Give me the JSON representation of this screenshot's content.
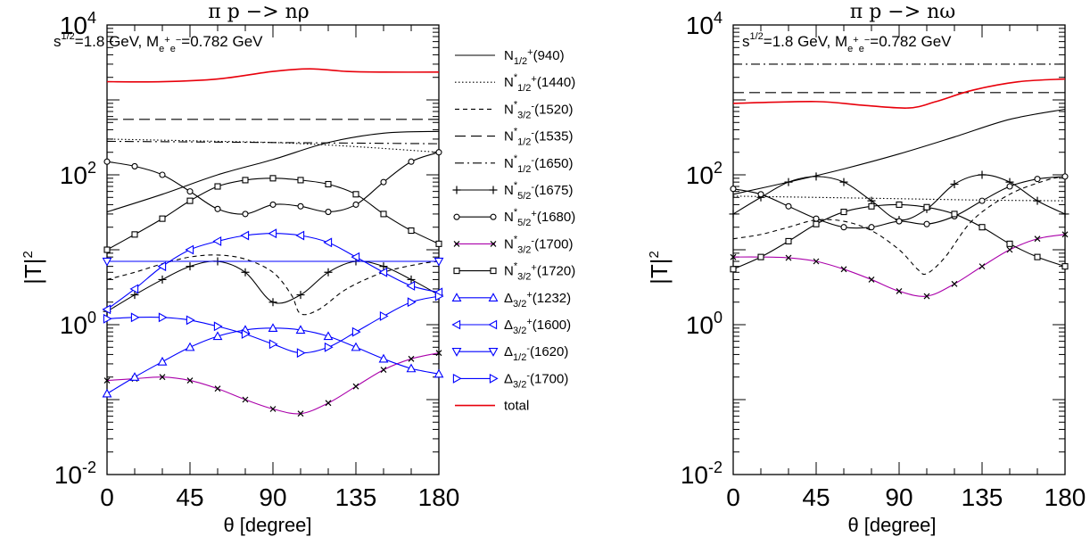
{
  "chart_data": [
    {
      "type": "line",
      "title": "π p −> nρ",
      "subtitle": "s^{1/2}=1.8 GeV,   M_{e⁺e⁻}=0.782 GeV",
      "xlabel": "θ [degree]",
      "ylabel": "|T|^2",
      "xlim": [
        0,
        180
      ],
      "ylim": [
        0.01,
        10000
      ],
      "yscale": "log",
      "x_ticks": [
        "0",
        "45",
        "90",
        "135",
        "180"
      ],
      "y_ticks": [
        "10^-2",
        "10^0",
        "10^2",
        "10^4"
      ],
      "grid": false,
      "legend": "right-side",
      "series": [
        {
          "name": "N_{1/2}^{+}(940)",
          "style": "solid",
          "color": "#000000",
          "marker": "none",
          "x": [
            0,
            30,
            60,
            90,
            120,
            150,
            180
          ],
          "y": [
            32,
            55,
            100,
            160,
            270,
            360,
            380
          ]
        },
        {
          "name": "N*_{1/2}^{+}(1440)",
          "style": "dotted",
          "color": "#000000",
          "marker": "none",
          "x": [
            0,
            30,
            60,
            90,
            120,
            150,
            180
          ],
          "y": [
            300,
            290,
            280,
            270,
            250,
            225,
            200
          ]
        },
        {
          "name": "N*_{3/2}^{-}(1520)",
          "style": "dashed",
          "color": "#000000",
          "marker": "none",
          "x": [
            0,
            15,
            30,
            45,
            60,
            75,
            90,
            100,
            105,
            115,
            130,
            150,
            170,
            180
          ],
          "y": [
            4,
            5,
            6.5,
            8,
            8.5,
            7.5,
            5,
            2.5,
            1.4,
            1.6,
            3,
            5,
            6.5,
            7
          ]
        },
        {
          "name": "N*_{1/2}^{-}(1535)",
          "style": "longdash",
          "color": "#000000",
          "marker": "none",
          "x": [
            0,
            180
          ],
          "y": [
            550,
            550
          ]
        },
        {
          "name": "N*_{1/2}^{-}(1650)",
          "style": "dashdot",
          "color": "#000000",
          "marker": "none",
          "x": [
            0,
            45,
            90,
            135,
            180
          ],
          "y": [
            280,
            275,
            270,
            265,
            260
          ]
        },
        {
          "name": "N*_{5/2}^{-}(1675)",
          "style": "solid",
          "color": "#000000",
          "marker": "plus",
          "x": [
            0,
            15,
            30,
            45,
            60,
            75,
            90,
            105,
            120,
            135,
            150,
            165,
            180
          ],
          "y": [
            1.5,
            2.5,
            4,
            6,
            7,
            5,
            2,
            2.5,
            5,
            7,
            6,
            4,
            2.5
          ]
        },
        {
          "name": "N*_{5/2}^{+}(1680)",
          "style": "solid",
          "color": "#000000",
          "marker": "circle",
          "x": [
            0,
            15,
            30,
            45,
            60,
            75,
            90,
            105,
            120,
            135,
            150,
            165,
            180
          ],
          "y": [
            150,
            130,
            100,
            60,
            35,
            30,
            40,
            38,
            32,
            40,
            80,
            150,
            200
          ]
        },
        {
          "name": "N*_{3/2}^{-}(1700)",
          "style": "solid",
          "color": "#aa00aa",
          "marker": "cross",
          "x": [
            0,
            15,
            30,
            45,
            60,
            75,
            90,
            105,
            120,
            135,
            150,
            165,
            180
          ],
          "y": [
            0.18,
            0.19,
            0.2,
            0.18,
            0.14,
            0.1,
            0.075,
            0.065,
            0.09,
            0.15,
            0.25,
            0.35,
            0.42
          ]
        },
        {
          "name": "N*_{3/2}^{+}(1720)",
          "style": "solid",
          "color": "#000000",
          "marker": "square",
          "x": [
            0,
            15,
            30,
            45,
            60,
            75,
            90,
            105,
            120,
            135,
            150,
            165,
            180
          ],
          "y": [
            10,
            16,
            26,
            45,
            70,
            85,
            90,
            85,
            75,
            55,
            30,
            18,
            12
          ]
        },
        {
          "name": "Δ_{3/2}^{+}(1232)",
          "style": "solid",
          "color": "#0000ff",
          "marker": "triangle-up",
          "x": [
            0,
            15,
            30,
            45,
            60,
            75,
            90,
            105,
            120,
            135,
            150,
            165,
            180
          ],
          "y": [
            0.12,
            0.2,
            0.32,
            0.5,
            0.7,
            0.85,
            0.9,
            0.85,
            0.7,
            0.5,
            0.35,
            0.26,
            0.22
          ]
        },
        {
          "name": "Δ_{3/2}^{+}(1600)",
          "style": "solid",
          "color": "#0000ff",
          "marker": "triangle-left",
          "x": [
            0,
            15,
            30,
            45,
            60,
            75,
            90,
            105,
            120,
            135,
            150,
            165,
            180
          ],
          "y": [
            1.6,
            3,
            6,
            10,
            13,
            15.5,
            16.5,
            15.5,
            12.5,
            8,
            5,
            3.3,
            2.7
          ]
        },
        {
          "name": "Δ_{1/2}^{-}(1620)",
          "style": "solid",
          "color": "#0000ff",
          "marker": "triangle-down",
          "x": [
            0,
            180
          ],
          "y": [
            7,
            7
          ]
        },
        {
          "name": "Δ_{3/2}^{-}(1700)",
          "style": "solid",
          "color": "#0000ff",
          "marker": "triangle-right",
          "x": [
            0,
            15,
            30,
            45,
            60,
            75,
            90,
            105,
            120,
            135,
            150,
            165,
            180
          ],
          "y": [
            1.2,
            1.25,
            1.25,
            1.15,
            0.95,
            0.75,
            0.55,
            0.42,
            0.5,
            0.8,
            1.3,
            2,
            2.4
          ]
        },
        {
          "name": "total",
          "style": "solid",
          "color": "#e8000b",
          "marker": "none",
          "x": [
            0,
            30,
            60,
            90,
            110,
            130,
            150,
            180
          ],
          "y": [
            1750,
            1750,
            1900,
            2400,
            2600,
            2400,
            2350,
            2350
          ]
        }
      ]
    },
    {
      "type": "line",
      "title": "π p −> nω",
      "subtitle": "s^{1/2}=1.8 GeV,   M_{e⁺e⁻}=0.782 GeV",
      "xlabel": "θ [degree]",
      "ylabel": "|T|^2",
      "xlim": [
        0,
        180
      ],
      "ylim": [
        0.01,
        10000
      ],
      "yscale": "log",
      "x_ticks": [
        "0",
        "45",
        "90",
        "135",
        "180"
      ],
      "y_ticks": [
        "10^-2",
        "10^0",
        "10^2",
        "10^4"
      ],
      "grid": false,
      "series": [
        {
          "name": "N_{1/2}^{+}(940)",
          "style": "solid",
          "color": "#000000",
          "marker": "none",
          "x": [
            0,
            30,
            60,
            90,
            120,
            150,
            180
          ],
          "y": [
            55,
            80,
            120,
            190,
            320,
            550,
            750
          ]
        },
        {
          "name": "N*_{1/2}^{+}(1440)",
          "style": "dotted",
          "color": "#000000",
          "marker": "none",
          "x": [
            0,
            45,
            90,
            135,
            180
          ],
          "y": [
            52,
            50,
            48,
            46,
            45
          ]
        },
        {
          "name": "N*_{3/2}^{-}(1520)",
          "style": "dashed",
          "color": "#000000",
          "marker": "none",
          "x": [
            0,
            15,
            30,
            45,
            60,
            75,
            90,
            100,
            105,
            115,
            130,
            150,
            170,
            180
          ],
          "y": [
            14,
            16,
            20,
            25,
            24,
            18,
            10,
            5.5,
            4.8,
            8,
            25,
            55,
            85,
            95
          ]
        },
        {
          "name": "N*_{1/2}^{-}(1535)",
          "style": "longdash",
          "color": "#000000",
          "marker": "none",
          "x": [
            0,
            180
          ],
          "y": [
            1250,
            1250
          ]
        },
        {
          "name": "N*_{1/2}^{-}(1650)",
          "style": "dashdot",
          "color": "#000000",
          "marker": "none",
          "x": [
            0,
            180
          ],
          "y": [
            3000,
            3000
          ]
        },
        {
          "name": "N*_{5/2}^{-}(1675)",
          "style": "solid",
          "color": "#000000",
          "marker": "plus",
          "x": [
            0,
            15,
            30,
            45,
            60,
            75,
            90,
            105,
            120,
            135,
            150,
            165,
            180
          ],
          "y": [
            30,
            50,
            80,
            95,
            80,
            45,
            25,
            35,
            75,
            100,
            80,
            45,
            30
          ]
        },
        {
          "name": "N*_{5/2}^{+}(1680)",
          "style": "solid",
          "color": "#000000",
          "marker": "circle",
          "x": [
            0,
            15,
            30,
            45,
            60,
            75,
            90,
            105,
            120,
            135,
            150,
            165,
            180
          ],
          "y": [
            65,
            55,
            38,
            26,
            20,
            20,
            24,
            22,
            28,
            45,
            70,
            88,
            95
          ]
        },
        {
          "name": "N*_{3/2}^{-}(1700)",
          "style": "solid",
          "color": "#aa00aa",
          "marker": "cross",
          "x": [
            0,
            15,
            30,
            45,
            60,
            75,
            90,
            105,
            120,
            135,
            150,
            165,
            180
          ],
          "y": [
            8,
            8,
            7.8,
            7,
            5.5,
            4,
            2.8,
            2.4,
            3.5,
            6,
            10,
            14,
            16
          ]
        },
        {
          "name": "N*_{3/2}^{+}(1720)",
          "style": "solid",
          "color": "#000000",
          "marker": "square",
          "x": [
            0,
            15,
            30,
            45,
            60,
            75,
            90,
            105,
            120,
            135,
            150,
            165,
            180
          ],
          "y": [
            5.5,
            8,
            13,
            22,
            32,
            38,
            40,
            37,
            30,
            20,
            12,
            8,
            6
          ]
        },
        {
          "name": "total",
          "style": "solid",
          "color": "#e8000b",
          "marker": "none",
          "x": [
            0,
            45,
            70,
            95,
            110,
            130,
            155,
            180
          ],
          "y": [
            900,
            950,
            850,
            780,
            950,
            1350,
            1750,
            1900
          ]
        }
      ]
    }
  ]
}
